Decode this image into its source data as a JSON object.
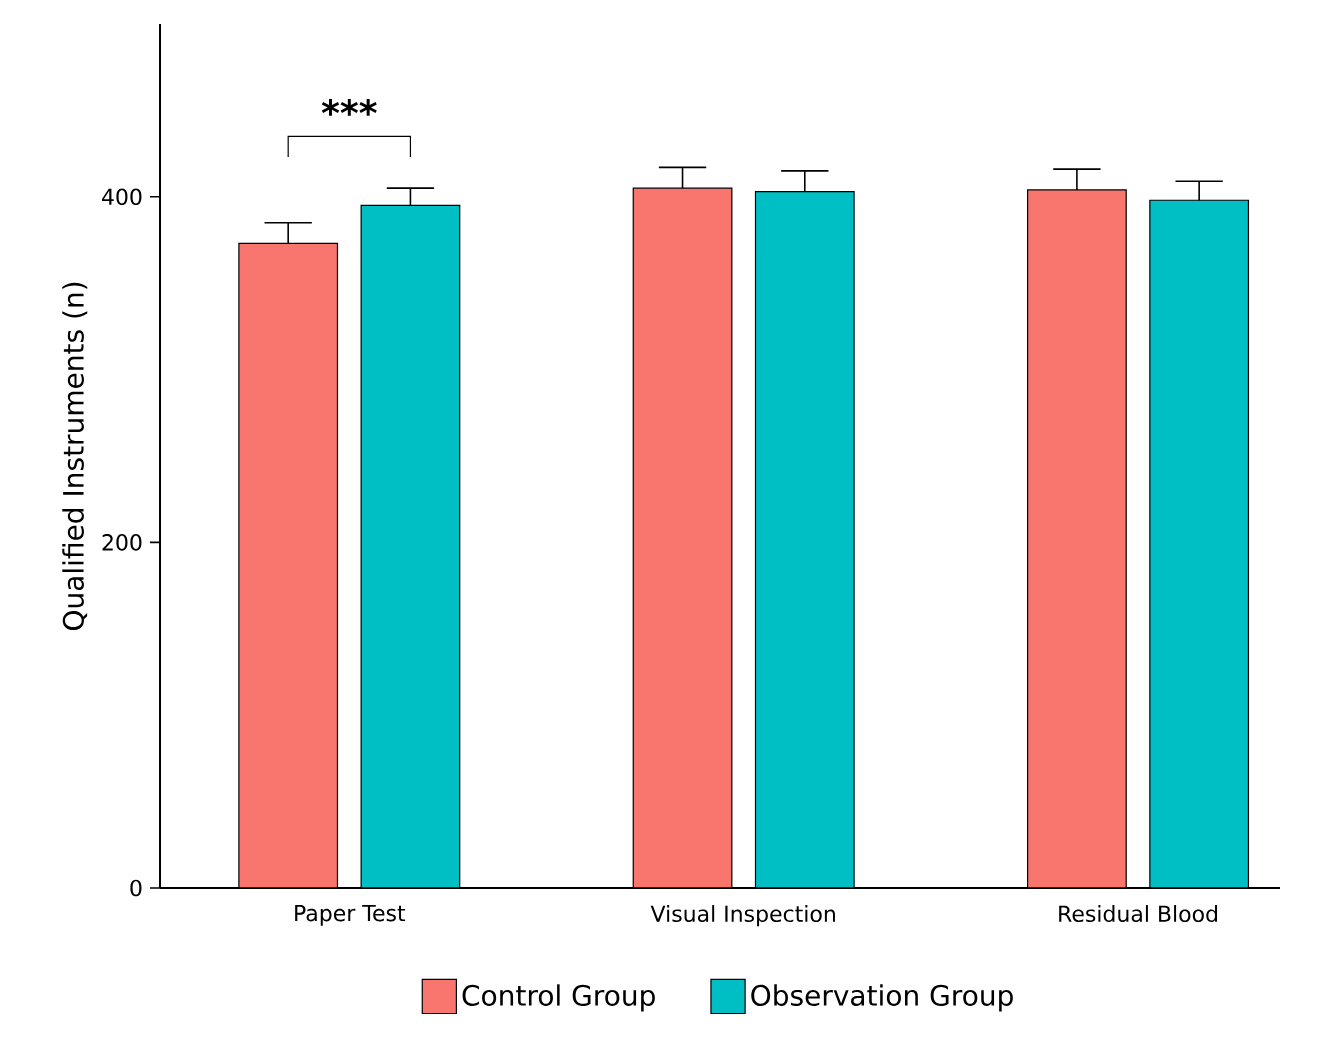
{
  "chart_data": {
    "type": "bar",
    "ylabel": "Qualified Instruments (n)",
    "categories": [
      "Paper Test",
      "Visual Inspection",
      "Residual Blood"
    ],
    "series": [
      {
        "name": "Control Group",
        "color": "#f8766d",
        "values": [
          373,
          405,
          404
        ],
        "errors": [
          [
            373,
            385
          ],
          [
            405,
            417
          ],
          [
            404,
            416
          ]
        ]
      },
      {
        "name": "Observation Group",
        "color": "#00bfc4",
        "values": [
          395,
          403,
          398
        ],
        "errors": [
          [
            395,
            405
          ],
          [
            403,
            415
          ],
          [
            398,
            409
          ]
        ]
      }
    ],
    "ylim": [
      0,
      500
    ],
    "yticks": [
      0,
      200,
      400
    ],
    "legend": "bottom",
    "grid": false,
    "annotations": [
      "***"
    ]
  }
}
